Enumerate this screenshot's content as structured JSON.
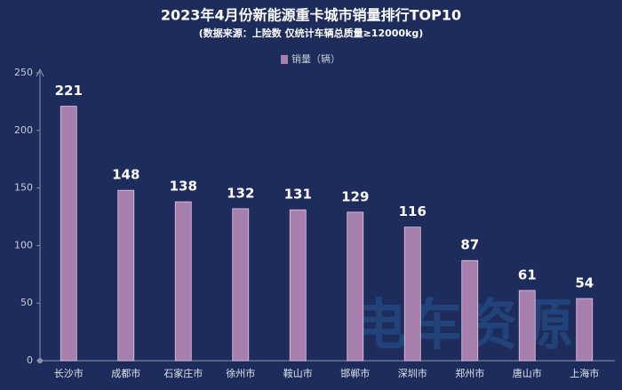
{
  "chart_data": {
    "type": "bar",
    "title": "2023年4月份新能源重卡城市销量排行TOP10",
    "subtitle": "(数据来源：上险数 仅统计车辆总质量≥12000kg)",
    "categories": [
      "长沙市",
      "成都市",
      "石家庄市",
      "徐州市",
      "鞍山市",
      "邯郸市",
      "深圳市",
      "郑州市",
      "唐山市",
      "上海市"
    ],
    "series": [
      {
        "name": "销量（辆）",
        "color": "#a67fad",
        "values": [
          221,
          148,
          138,
          132,
          131,
          129,
          116,
          87,
          61,
          54
        ]
      }
    ],
    "ylim": [
      0,
      250
    ],
    "yticks": [
      0,
      50,
      100,
      150,
      200,
      250
    ],
    "grid": false,
    "legend": "top",
    "watermark": "电车资源"
  }
}
